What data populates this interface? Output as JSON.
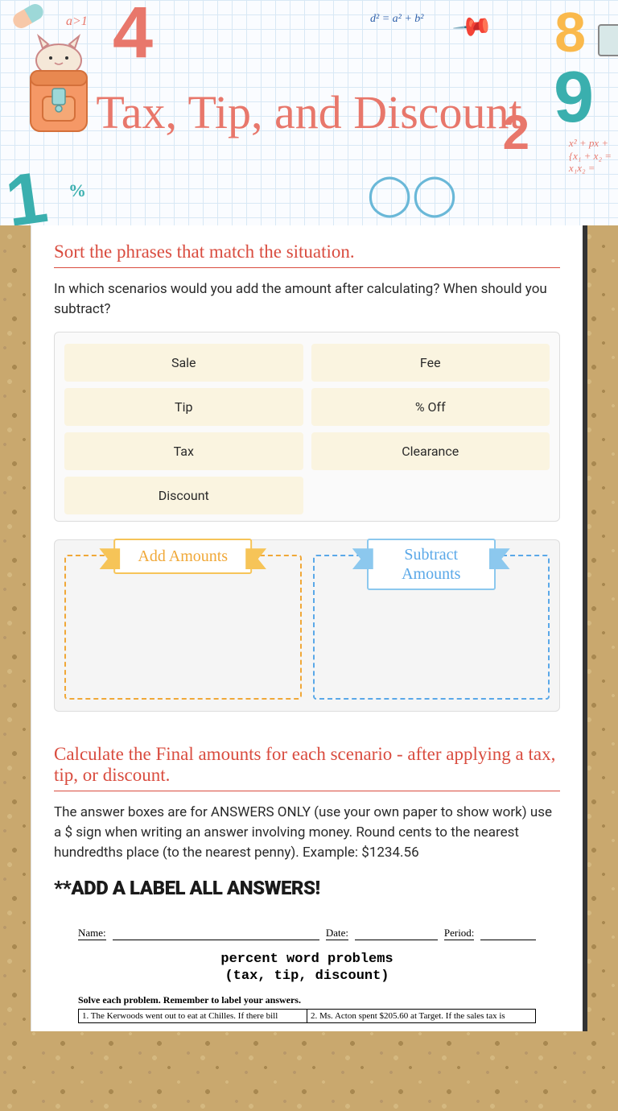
{
  "header": {
    "title": "Tax, Tip, and Discount",
    "title_color": "#e8776b",
    "doodles": {
      "formula1": "d² = a² + b²",
      "a1": "a>1",
      "formula2_l1": "x² + px +",
      "formula2_l2": "{x₁ + x₂ =",
      "formula2_l3": " x₁x₂ ="
    },
    "grid_color": "#d8e8f5",
    "bg_color": "#fafcff"
  },
  "section1": {
    "title": "Sort the phrases that match the situation.",
    "desc": "In which scenarios would you add the amount after calculating? When should you subtract?",
    "cards": [
      "Sale",
      "Fee",
      "Tip",
      "% Off",
      "Tax",
      "Clearance",
      "Discount"
    ],
    "card_bg": "#faf4e0",
    "dropzones": {
      "add": {
        "label": "Add Amounts",
        "color": "#f0a838",
        "border": "#f0a838"
      },
      "sub": {
        "label": "Subtract Amounts",
        "color": "#5aa8e8",
        "border": "#5aa8e8"
      }
    }
  },
  "section2": {
    "title": "Calculate the Final amounts for each scenario - after applying a tax, tip, or discount.",
    "desc": "The answer boxes are for ANSWERS ONLY (use your own paper to show work)  use a $ sign when writing an answer involving money. Round cents to the nearest hundredths place (to the nearest penny).  Example:  $1234.56",
    "bold_label": "**ADD A LABEL ALL ANSWERS!"
  },
  "worksheet": {
    "name_label": "Name:",
    "date_label": "Date:",
    "period_label": "Period:",
    "title_l1": "percent word problems",
    "title_l2": "(tax, tip, discount)",
    "instructions": "Solve each problem.  Remember to label your answers.",
    "prob1": "1.  The Kerwoods went out to eat at Chilles.  If there bill",
    "prob2": "2.  Ms. Acton spent $205.60 at Target.  If the sales tax is"
  },
  "colors": {
    "title_red": "#d94c3f",
    "text": "#2a2a2a",
    "cork": "#c9a86e"
  }
}
